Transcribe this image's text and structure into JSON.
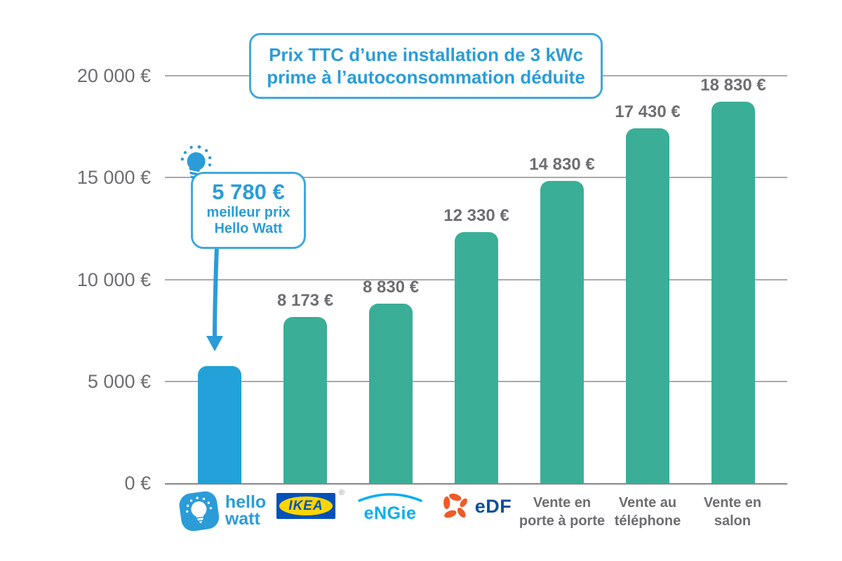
{
  "title_box": {
    "line1": "Prix TTC d’une installation de 3 kWc",
    "line2": "prime à l’autoconsommation déduite"
  },
  "callout": {
    "price": "5 780 €",
    "line1": "meilleur prix",
    "line2": "Hello Watt"
  },
  "y_axis_labels": [
    "20 000 €",
    "15 000 €",
    "10 000 €",
    "5 000 €",
    "0 €"
  ],
  "x_labels": {
    "hellowatt": {
      "line1": "hello",
      "line2": "watt"
    },
    "ikea": {
      "text": "IKEA",
      "registered": "®"
    },
    "engie": {
      "text": "eNGie"
    },
    "edf": {
      "text": "eDF"
    },
    "col5": {
      "line1": "Vente en",
      "line2": "porte à porte"
    },
    "col6": {
      "line1": "Vente au",
      "line2": "téléphone"
    },
    "col7": {
      "line1": "Vente en",
      "line2": "salon"
    }
  },
  "colors": {
    "accent_blue": "#22a2d8",
    "teal": "#3aae97",
    "gray_text": "#6d6e71",
    "gridline": "#a8aaad",
    "ikea_blue": "#0051ba",
    "ikea_yellow": "#ffd500",
    "engie_blue": "#00aeef",
    "edf_blue": "#0b4fa0",
    "edf_orange": "#f05a28"
  },
  "chart_data": {
    "type": "bar",
    "title": "Prix TTC d’une installation de 3 kWc prime à l’autoconsommation déduite",
    "categories": [
      "Hello Watt",
      "IKEA",
      "ENGIE",
      "EDF",
      "Vente en porte à porte",
      "Vente au téléphone",
      "Vente en salon"
    ],
    "values": [
      5780,
      8173,
      8830,
      12330,
      14830,
      17430,
      18830
    ],
    "value_labels": [
      "5 780 €",
      "8 173 €",
      "8 830 €",
      "12 330 €",
      "14 830 €",
      "17 430 €",
      "18 830 €"
    ],
    "ylim": [
      0,
      20000
    ],
    "ytick_labels": [
      "0 €",
      "5 000 €",
      "10 000 €",
      "15 000 €",
      "20 000 €"
    ],
    "bar_colors": [
      "#22a2d8",
      "#3aae97",
      "#3aae97",
      "#3aae97",
      "#3aae97",
      "#3aae97",
      "#3aae97"
    ],
    "grid": true,
    "legend": "none",
    "highlight_index": 0,
    "annotation": "5 780 € meilleur prix Hello Watt"
  }
}
